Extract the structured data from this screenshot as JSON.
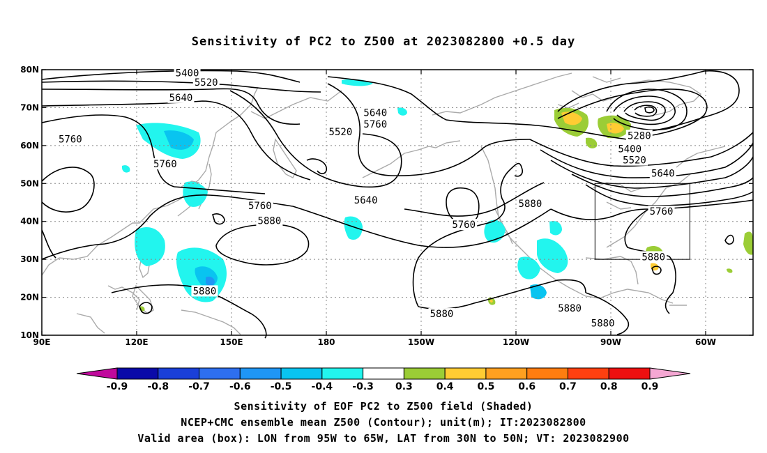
{
  "title": "Sensitivity of PC2 to Z500 at 2023082800 +0.5 day",
  "map": {
    "lat_labels": [
      "80N",
      "70N",
      "60N",
      "50N",
      "40N",
      "30N",
      "20N",
      "10N"
    ],
    "lon_labels": [
      "90E",
      "120E",
      "150E",
      "180",
      "150W",
      "120W",
      "90W",
      "60W"
    ],
    "contour_labels": [
      {
        "text": "5400",
        "lon": 136,
        "lat": 79
      },
      {
        "text": "5520",
        "lon": 142,
        "lat": 76.5
      },
      {
        "text": "5640",
        "lon": 134,
        "lat": 72.5
      },
      {
        "text": "5760",
        "lon": 99,
        "lat": 61.5
      },
      {
        "text": "5760",
        "lon": 129,
        "lat": 55
      },
      {
        "text": "5760",
        "lon": 159,
        "lat": 44
      },
      {
        "text": "5880",
        "lon": 162,
        "lat": 40
      },
      {
        "text": "5520",
        "lon": 184.5,
        "lat": 63.5
      },
      {
        "text": "5640",
        "lon": 195.5,
        "lat": 68.5
      },
      {
        "text": "5760",
        "lon": 195.5,
        "lat": 65.5
      },
      {
        "text": "5640",
        "lon": 192.5,
        "lat": 45.5
      },
      {
        "text": "5760",
        "lon": 223.5,
        "lat": 39
      },
      {
        "text": "5880",
        "lon": 244.5,
        "lat": 44.5
      },
      {
        "text": "5280",
        "lon": 279,
        "lat": 62.5
      },
      {
        "text": "5400",
        "lon": 276,
        "lat": 59
      },
      {
        "text": "5520",
        "lon": 277.5,
        "lat": 56
      },
      {
        "text": "5640",
        "lon": 286.5,
        "lat": 52.5
      },
      {
        "text": "5760",
        "lon": 286,
        "lat": 42.5
      },
      {
        "text": "5880",
        "lon": 283.5,
        "lat": 30.5
      },
      {
        "text": "5880",
        "lon": 141.5,
        "lat": 21.5
      },
      {
        "text": "5880",
        "lon": 216.5,
        "lat": 15.5
      },
      {
        "text": "5880",
        "lon": 257,
        "lat": 17
      },
      {
        "text": "5880",
        "lon": 267.5,
        "lat": 13
      }
    ],
    "valid_box": {
      "lon_min": -95,
      "lon_max": -65,
      "lat_min": 30,
      "lat_max": 50
    }
  },
  "colorbar": {
    "levels": [
      "-0.9",
      "-0.8",
      "-0.7",
      "-0.6",
      "-0.5",
      "-0.4",
      "-0.3",
      "0.3",
      "0.4",
      "0.5",
      "0.6",
      "0.7",
      "0.8",
      "0.9"
    ],
    "colors": [
      "#c0099c",
      "#0a0aa8",
      "#1a3fd8",
      "#2e6fef",
      "#1f96f5",
      "#09c4f0",
      "#22f5ee",
      "#ffffff",
      "#9bcd36",
      "#ffcc33",
      "#ffa020",
      "#ff7d10",
      "#ff4010",
      "#ee1010",
      "#f5a7d3"
    ]
  },
  "captions": {
    "line1": "Sensitivity of EOF PC2 to Z500 field (Shaded)",
    "line2": "NCEP+CMC ensemble mean Z500 (Contour); unit(m); IT:2023082800",
    "line3": "Valid area (box): LON from 95W to 65W, LAT from 30N to 50N; VT: 2023082900"
  }
}
